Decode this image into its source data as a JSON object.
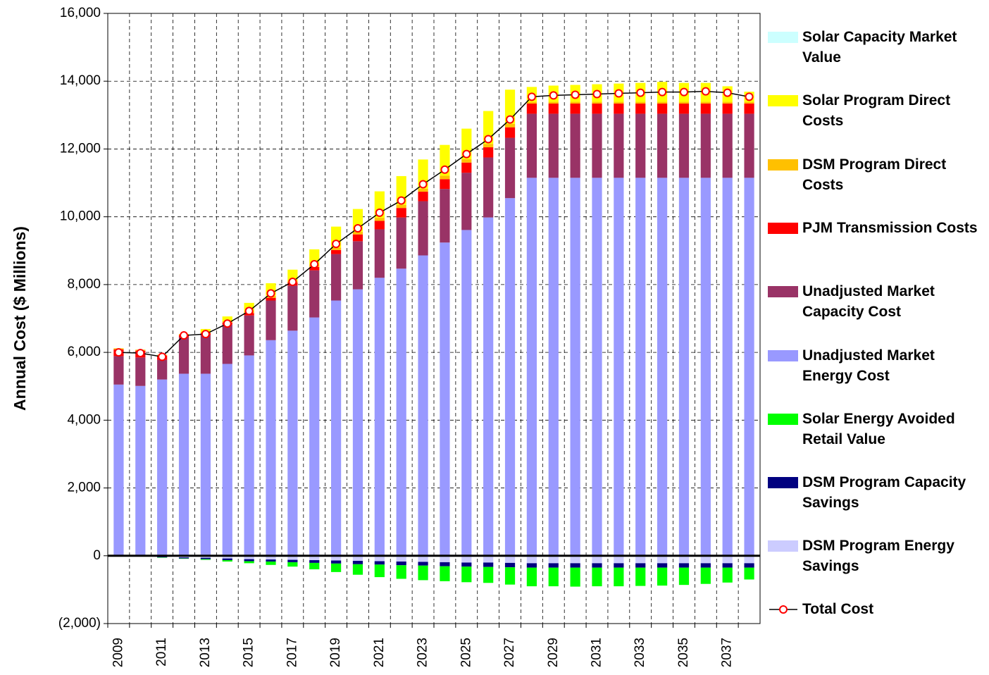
{
  "chart_data": {
    "type": "bar",
    "stacked": true,
    "y_label": "Annual Cost ($ Millions)",
    "categories": [
      "2009",
      null,
      "2011",
      null,
      "2013",
      null,
      "2015",
      null,
      "2017",
      null,
      "2019",
      null,
      "2021",
      null,
      "2023",
      null,
      "2025",
      null,
      "2027",
      null,
      "2029",
      null,
      "2031",
      null,
      "2033",
      null,
      "2035",
      null,
      "2037",
      null
    ],
    "ylim": [
      -2000,
      16000
    ],
    "yticks": [
      {
        "value": -2000,
        "label": "(2,000)"
      },
      0,
      {
        "value": 2000,
        "label": "2,000"
      },
      {
        "value": 4000,
        "label": "4,000"
      },
      {
        "value": 6000,
        "label": "6,000"
      },
      {
        "value": 8000,
        "label": "8,000"
      },
      {
        "value": 10000,
        "label": "10,000"
      },
      {
        "value": 12000,
        "label": "12,000"
      },
      {
        "value": 14000,
        "label": "14,000"
      },
      {
        "value": 16000,
        "label": "16,000"
      }
    ],
    "grid": true,
    "legend": "right",
    "series": [
      {
        "name": "Solar Capacity Market Value",
        "color": "#ccffff",
        "values": [
          0,
          0,
          0,
          0,
          0,
          0,
          0,
          0,
          0,
          0,
          0,
          0,
          0,
          0,
          0,
          0,
          0,
          0,
          0,
          0,
          0,
          0,
          0,
          0,
          0,
          0,
          0,
          0,
          0,
          0
        ]
      },
      {
        "name": "Solar Program Direct Costs",
        "color": "#ffff00",
        "values": [
          0,
          0,
          0,
          0,
          90,
          140,
          250,
          370,
          320,
          450,
          620,
          670,
          780,
          850,
          860,
          910,
          900,
          970,
          1010,
          440,
          480,
          500,
          520,
          540,
          560,
          590,
          560,
          560,
          460,
          300
        ]
      },
      {
        "name": "DSM Program Direct Costs",
        "color": "#ffc000",
        "values": [
          30,
          30,
          30,
          30,
          30,
          40,
          50,
          60,
          60,
          70,
          70,
          80,
          90,
          90,
          90,
          100,
          100,
          100,
          100,
          50,
          50,
          50,
          50,
          50,
          50,
          50,
          50,
          50,
          50,
          50
        ]
      },
      {
        "name": "PJM Transmission Costs",
        "color": "#ff0000",
        "values": [
          200,
          200,
          120,
          60,
          60,
          60,
          70,
          80,
          90,
          100,
          120,
          200,
          250,
          280,
          280,
          290,
          300,
          300,
          310,
          300,
          300,
          300,
          300,
          300,
          300,
          300,
          300,
          300,
          300,
          300
        ]
      },
      {
        "name": "Unadjusted Market Capacity Cost",
        "color": "#993366",
        "values": [
          840,
          840,
          580,
          1080,
          1140,
          1160,
          1180,
          1170,
          1330,
          1390,
          1370,
          1420,
          1430,
          1510,
          1600,
          1580,
          1690,
          1770,
          1780,
          1890,
          1890,
          1890,
          1890,
          1890,
          1890,
          1890,
          1890,
          1890,
          1890,
          1890
        ]
      },
      {
        "name": "Unadjusted Market Energy Cost",
        "color": "#9999ff",
        "values": [
          5050,
          5010,
          5200,
          5370,
          5370,
          5660,
          5910,
          6360,
          6640,
          7030,
          7530,
          7860,
          8200,
          8470,
          8860,
          9240,
          9610,
          9980,
          10550,
          11150,
          11150,
          11150,
          11150,
          11150,
          11150,
          11150,
          11150,
          11150,
          11150,
          11150
        ]
      },
      {
        "name": "Solar Energy Avoided Retail Value",
        "color": "#00ff00",
        "values": [
          0,
          0,
          -10,
          -10,
          -20,
          -40,
          -60,
          -100,
          -130,
          -190,
          -250,
          -310,
          -370,
          -400,
          -430,
          -440,
          -460,
          -470,
          -510,
          -550,
          -550,
          -560,
          -550,
          -550,
          -540,
          -530,
          -510,
          -480,
          -440,
          -350
        ]
      },
      {
        "name": "DSM Program Capacity Savings",
        "color": "#000080",
        "values": [
          0,
          -10,
          -20,
          -30,
          -40,
          -50,
          -60,
          -60,
          -70,
          -80,
          -90,
          -100,
          -100,
          -110,
          -110,
          -120,
          -120,
          -130,
          -130,
          -130,
          -130,
          -130,
          -130,
          -130,
          -130,
          -130,
          -130,
          -130,
          -130,
          -130
        ]
      },
      {
        "name": "DSM Program Energy Savings",
        "color": "#ccccff",
        "values": [
          0,
          -10,
          -30,
          -50,
          -60,
          -80,
          -100,
          -110,
          -120,
          -130,
          -140,
          -150,
          -160,
          -170,
          -180,
          -190,
          -200,
          -200,
          -210,
          -220,
          -220,
          -220,
          -220,
          -220,
          -220,
          -220,
          -220,
          -220,
          -220,
          -220
        ]
      },
      {
        "name": "Total Cost",
        "type": "line",
        "color": "#000000",
        "marker_color": "#ff0000",
        "values": [
          6000,
          5980,
          5870,
          6500,
          6540,
          6850,
          7220,
          7740,
          8080,
          8600,
          9200,
          9660,
          10120,
          10480,
          10960,
          11390,
          11850,
          12290,
          12870,
          13540,
          13580,
          13600,
          13620,
          13640,
          13660,
          13680,
          13680,
          13700,
          13660,
          13540
        ]
      }
    ]
  }
}
